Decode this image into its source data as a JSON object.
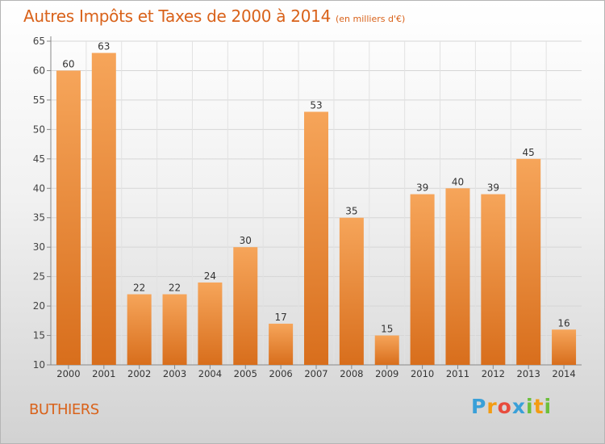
{
  "header": {
    "title": "Autres Impôts et Taxes de 2000 à 2014",
    "subtitle": "(en milliers d'€)"
  },
  "footer": {
    "commune": "BUTHIERS",
    "logo_letters": [
      "P",
      "r",
      "o",
      "x",
      "i",
      "t",
      "i"
    ],
    "logo_colors": [
      "#3aa0d8",
      "#f39c12",
      "#e84c3d",
      "#3aa0d8",
      "#6cbf3b",
      "#f39c12",
      "#6cbf3b"
    ]
  },
  "colors": {
    "bar_light": "#f6a55a",
    "bar_dark": "#d86e1c",
    "title": "#d9621a"
  },
  "chart_data": {
    "type": "bar",
    "categories": [
      "2000",
      "2001",
      "2002",
      "2003",
      "2004",
      "2005",
      "2006",
      "2007",
      "2008",
      "2009",
      "2010",
      "2011",
      "2012",
      "2013",
      "2014"
    ],
    "values": [
      60,
      63,
      22,
      22,
      24,
      30,
      17,
      53,
      35,
      15,
      39,
      40,
      39,
      45,
      16
    ],
    "ylim": [
      10,
      65
    ],
    "yticks": [
      10,
      15,
      20,
      25,
      30,
      35,
      40,
      45,
      50,
      55,
      60,
      65
    ],
    "grid": true,
    "data_labels": true
  }
}
